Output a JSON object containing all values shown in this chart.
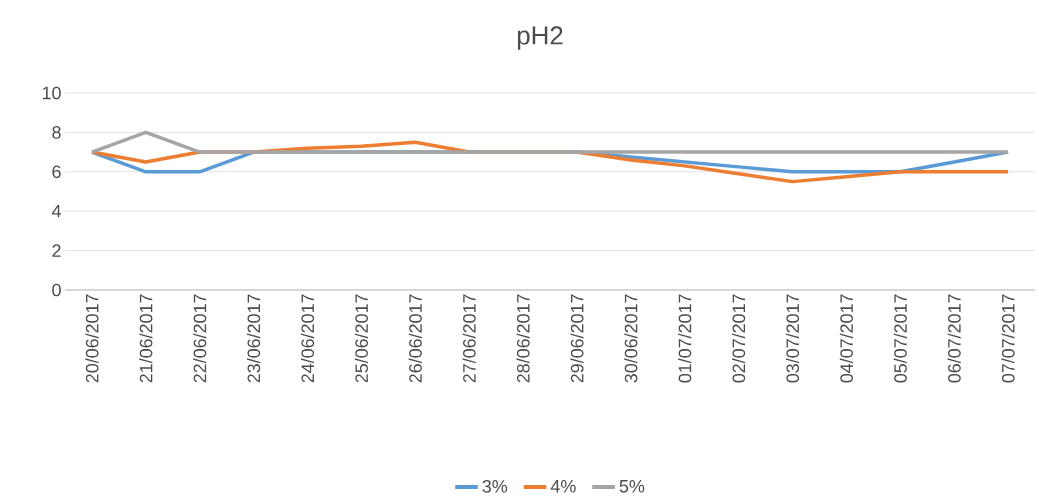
{
  "chart_data": {
    "type": "line",
    "title": "pH2",
    "categories": [
      "20/06/2017",
      "21/06/2017",
      "22/06/2017",
      "23/06/2017",
      "24/06/2017",
      "25/06/2017",
      "26/06/2017",
      "27/06/2017",
      "28/06/2017",
      "29/06/2017",
      "30/06/2017",
      "01/07/2017",
      "02/07/2017",
      "03/07/2017",
      "04/07/2017",
      "05/07/2017",
      "06/07/2017",
      "07/07/2017"
    ],
    "series": [
      {
        "name": "3%",
        "color": "#5b9bd5",
        "values": [
          7,
          6,
          6,
          7,
          7,
          7,
          7,
          7,
          7,
          7,
          6.75,
          6.5,
          6.25,
          6,
          6,
          6,
          6.5,
          7
        ]
      },
      {
        "name": "4%",
        "color": "#ed7d31",
        "values": [
          7,
          6.5,
          7,
          7,
          7.2,
          7.3,
          7.5,
          7,
          7,
          7,
          6.6,
          6.3,
          5.9,
          5.5,
          5.75,
          6,
          6,
          6
        ]
      },
      {
        "name": "5%",
        "color": "#a5a5a5",
        "values": [
          7,
          8,
          7,
          7,
          7,
          7,
          7,
          7,
          7,
          7,
          7,
          7,
          7,
          7,
          7,
          7,
          7,
          7
        ]
      }
    ],
    "ylim": [
      0,
      10
    ],
    "yticks": [
      0,
      2,
      4,
      6,
      8,
      10
    ],
    "grid": "y",
    "legend": "bottom"
  }
}
